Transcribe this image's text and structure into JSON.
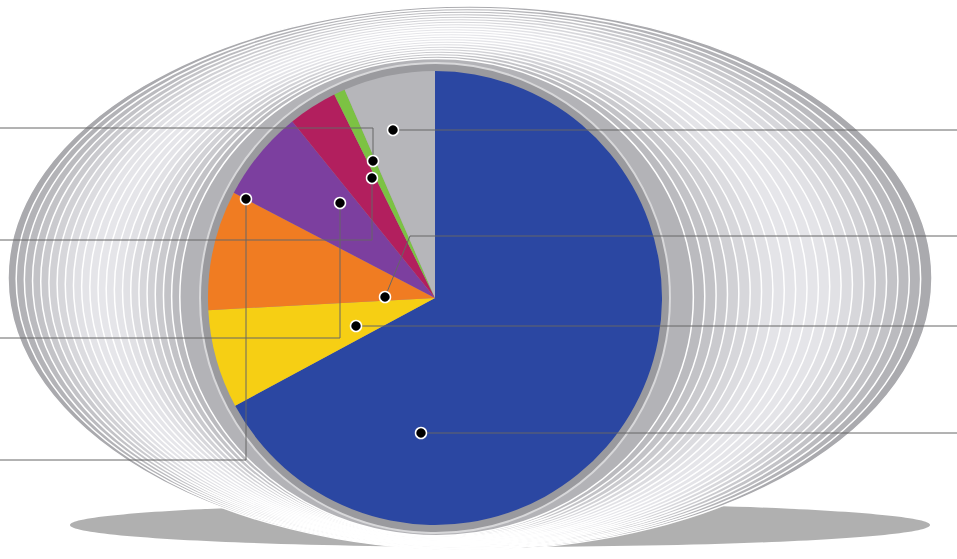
{
  "chart_data": {
    "type": "pie",
    "values": [
      67,
      7,
      8.5,
      6.5,
      3.5,
      0.8,
      6.5
    ],
    "colors": [
      "#2b47a2",
      "#f6cf14",
      "#f07c22",
      "#7c3f9f",
      "#b21f5e",
      "#7cc243",
      "#b6b6ba"
    ],
    "data_labels": false
  }
}
